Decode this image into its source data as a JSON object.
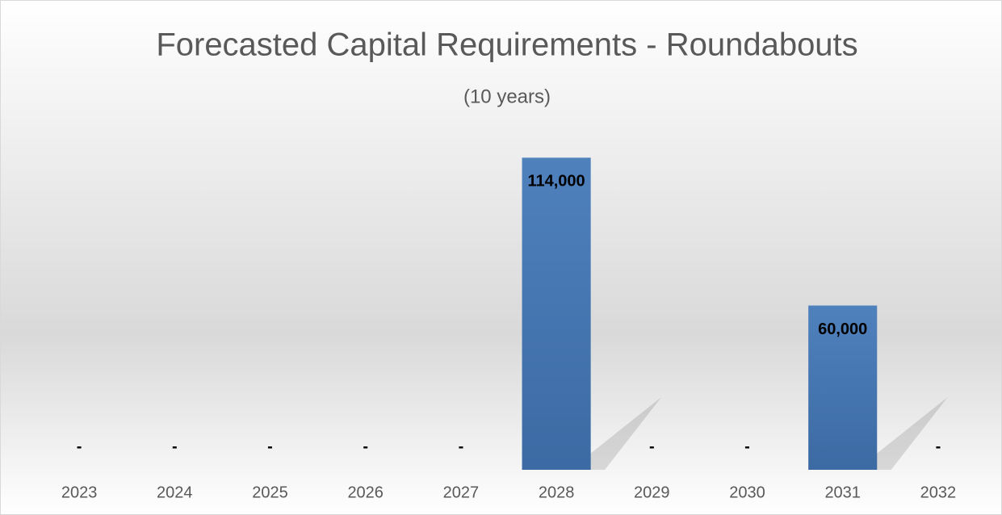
{
  "chart_data": {
    "type": "bar",
    "title": "Forecasted Capital Requirements - Roundabouts",
    "subtitle": "(10 years)",
    "categories": [
      "2023",
      "2024",
      "2025",
      "2026",
      "2027",
      "2028",
      "2029",
      "2030",
      "2031",
      "2032"
    ],
    "values": [
      0,
      0,
      0,
      0,
      0,
      114000,
      0,
      0,
      60000,
      0
    ],
    "value_labels": [
      "-",
      "-",
      "-",
      "-",
      "-",
      "114,000",
      "-",
      "-",
      "60,000",
      "-"
    ],
    "color": "#4a7ebb",
    "ylim": [
      0,
      120000
    ],
    "grid": false
  }
}
